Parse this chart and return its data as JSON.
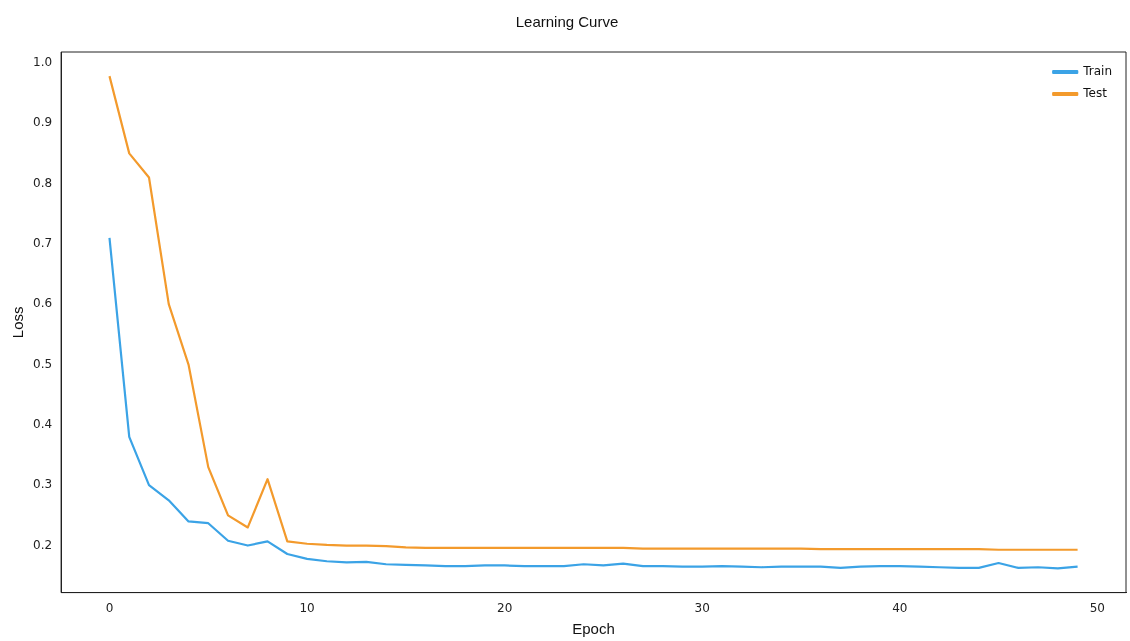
{
  "chart_data": {
    "type": "line",
    "title": "Learning Curve",
    "xlabel": "Epoch",
    "ylabel": "Loss",
    "x": [
      0,
      1,
      2,
      3,
      4,
      5,
      6,
      7,
      8,
      9,
      10,
      11,
      12,
      13,
      14,
      15,
      16,
      17,
      18,
      19,
      20,
      21,
      22,
      23,
      24,
      25,
      26,
      27,
      28,
      29,
      30,
      31,
      32,
      33,
      34,
      35,
      36,
      37,
      38,
      39,
      40,
      41,
      42,
      43,
      44,
      45,
      46,
      47,
      48,
      49
    ],
    "series": [
      {
        "name": "Train",
        "color": "#3ba3e6",
        "values": [
          0.71,
          0.38,
          0.3,
          0.275,
          0.24,
          0.237,
          0.208,
          0.2,
          0.207,
          0.186,
          0.178,
          0.174,
          0.172,
          0.173,
          0.169,
          0.168,
          0.167,
          0.166,
          0.166,
          0.167,
          0.167,
          0.166,
          0.166,
          0.166,
          0.169,
          0.167,
          0.17,
          0.166,
          0.166,
          0.165,
          0.165,
          0.166,
          0.165,
          0.164,
          0.165,
          0.165,
          0.165,
          0.163,
          0.165,
          0.166,
          0.166,
          0.165,
          0.164,
          0.163,
          0.163,
          0.171,
          0.163,
          0.164,
          0.162,
          0.165
        ]
      },
      {
        "name": "Test",
        "color": "#f39a2c",
        "values": [
          0.978,
          0.85,
          0.81,
          0.6,
          0.5,
          0.33,
          0.25,
          0.23,
          0.31,
          0.207,
          0.203,
          0.201,
          0.2,
          0.2,
          0.199,
          0.197,
          0.196,
          0.196,
          0.196,
          0.196,
          0.196,
          0.196,
          0.196,
          0.196,
          0.196,
          0.196,
          0.196,
          0.195,
          0.195,
          0.195,
          0.195,
          0.195,
          0.195,
          0.195,
          0.195,
          0.195,
          0.194,
          0.194,
          0.194,
          0.194,
          0.194,
          0.194,
          0.194,
          0.194,
          0.194,
          0.193,
          0.193,
          0.193,
          0.193,
          0.193
        ]
      }
    ],
    "xlim": [
      -2.45,
      51.45
    ],
    "xticks": [
      0,
      10,
      20,
      30,
      40,
      50
    ],
    "ylim": [
      0.122,
      1.018
    ],
    "yticks": [
      {
        "value": 0.2,
        "label": "0.2"
      },
      {
        "value": 0.3,
        "label": "0.3"
      },
      {
        "value": 0.4,
        "label": "0.4"
      },
      {
        "value": 0.5,
        "label": "0.5"
      },
      {
        "value": 0.6,
        "label": "0.6"
      },
      {
        "value": 0.7,
        "label": "0.7"
      },
      {
        "value": 0.8,
        "label": "0.8"
      },
      {
        "value": 0.9,
        "label": "0.9"
      },
      {
        "value": 1.0,
        "label": "1.0"
      }
    ],
    "grid": false,
    "legend": "top right",
    "marker": "none",
    "line_style": "solid"
  }
}
